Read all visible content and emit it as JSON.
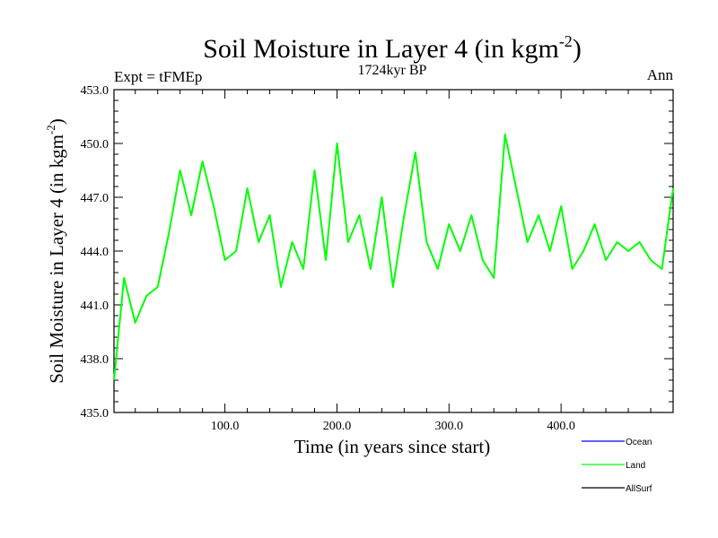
{
  "chart_data": {
    "type": "line",
    "title": "Soil Moisture in Layer 4 (in kgm",
    "title_sup": "-2",
    "title_end": ")",
    "subtitle": "1724kyr BP",
    "left_label": "Expt = tFMEp",
    "right_label": "Ann",
    "xlabel": "Time (in years since start)",
    "ylabel": "Soil Moisture in Layer 4 (in kgm",
    "ylabel_sup": "-2",
    "ylabel_end": ")",
    "xlim": [
      1,
      500
    ],
    "ylim": [
      435.0,
      453.0
    ],
    "x_ticks": [
      100,
      200,
      300,
      400
    ],
    "x_tick_labels": [
      "100.0",
      "200.0",
      "300.0",
      "400.0"
    ],
    "y_ticks": [
      435,
      438,
      441,
      444,
      447,
      450,
      453
    ],
    "y_tick_labels": [
      "435.0",
      "438.0",
      "441.0",
      "444.0",
      "447.0",
      "450.0",
      "453.0"
    ],
    "legend": [
      {
        "name": "Ocean",
        "color": "#0000ff"
      },
      {
        "name": "Land",
        "color": "#00ff00"
      },
      {
        "name": "AllSurf",
        "color": "#000000"
      }
    ],
    "series": [
      {
        "name": "Land",
        "color": "#00ff00",
        "x": [
          1,
          10,
          20,
          30,
          40,
          50,
          60,
          70,
          80,
          90,
          100,
          110,
          120,
          130,
          140,
          150,
          160,
          170,
          180,
          190,
          200,
          210,
          220,
          230,
          240,
          250,
          260,
          270,
          280,
          290,
          300,
          310,
          320,
          330,
          340,
          350,
          360,
          370,
          380,
          390,
          400,
          410,
          420,
          430,
          440,
          450,
          460,
          470,
          480,
          490,
          500
        ],
        "values": [
          436.8,
          442.5,
          440.0,
          441.5,
          442.0,
          445.0,
          448.5,
          446.0,
          449.0,
          446.5,
          443.5,
          444.0,
          447.5,
          444.5,
          446.0,
          442.0,
          444.5,
          443.0,
          448.5,
          443.5,
          450.0,
          444.5,
          446.0,
          443.0,
          447.0,
          442.0,
          446.0,
          449.5,
          444.5,
          443.0,
          445.5,
          444.0,
          446.0,
          443.5,
          442.5,
          450.5,
          447.5,
          444.5,
          446.0,
          444.0,
          446.5,
          443.0,
          444.0,
          445.5,
          443.5,
          444.5,
          444.0,
          444.5,
          443.5,
          443.0,
          447.5
        ]
      }
    ]
  }
}
